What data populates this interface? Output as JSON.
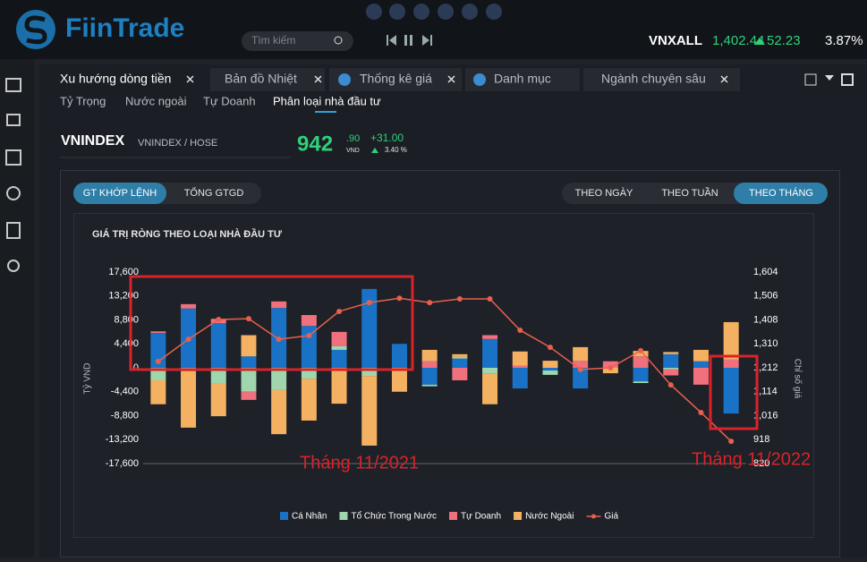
{
  "header": {
    "logo": "FiinTrade",
    "search_placeholder": "Tìm kiếm",
    "ticker": "VNXALL",
    "price": "1,402.44",
    "change": "52.23",
    "change_pct": "3.87%"
  },
  "tabs": [
    "Xu hướng dòng tiền",
    "Bản đồ Nhiệt",
    "Thống kê giá",
    "Danh mục",
    "Ngành chuyên sâu"
  ],
  "subtabs": [
    "Tỷ Trọng",
    "Nước ngoài",
    "Tự Doanh",
    "Phân loại nhà đầu tư"
  ],
  "index": {
    "name": "VNINDEX",
    "exchange": "VNINDEX / HOSE",
    "price_int": "942",
    "price_dec": ".90",
    "unit": "VND",
    "change": "+31.00",
    "change_pct": "3.40 %"
  },
  "value_buttons": [
    "GT KHỚP LỆNH",
    "TỔNG GTGD"
  ],
  "period_buttons": [
    "THEO NGÀY",
    "THEO TUẦN",
    "THEO THÁNG"
  ],
  "chart_data": {
    "type": "bar",
    "stacked": true,
    "title": "GIÁ TRỊ RÒNG THEO LOẠI NHÀ ĐẦU TƯ",
    "y_label": "Tỷ VND",
    "y2_label": "Chỉ số giá",
    "annotations": [
      "Tháng 11/2021",
      "Tháng 11/2022"
    ],
    "categories": [
      null,
      null,
      null,
      null,
      null,
      null,
      null,
      null,
      null,
      null,
      null,
      null,
      null,
      null,
      null,
      null,
      null,
      null,
      null,
      null
    ],
    "series": [
      {
        "name": "Cá Nhân",
        "color": "#1a72c6",
        "values": [
          6400,
          10900,
          8200,
          2100,
          11000,
          7700,
          3300,
          14500,
          4400,
          -3100,
          1700,
          5300,
          -3800,
          -500,
          -3800,
          0,
          -2500,
          2500,
          1200,
          -8400
        ]
      },
      {
        "name": "Tổ Chức Trong Nước",
        "color": "#9fd6ae",
        "values": [
          -2300,
          -600,
          -2800,
          -4400,
          -4100,
          -2000,
          700,
          -1500,
          0,
          -300,
          300,
          -1100,
          0,
          -800,
          0,
          0,
          -300,
          -300,
          0,
          0
        ]
      },
      {
        "name": "Tự Doanh",
        "color": "#f0707e",
        "values": [
          300,
          800,
          800,
          -1500,
          1200,
          2000,
          2600,
          0,
          0,
          1200,
          -2300,
          700,
          400,
          0,
          1300,
          1200,
          2100,
          -1100,
          -3100,
          1500
        ]
      },
      {
        "name": "Nước Ngoài",
        "color": "#f4b162",
        "values": [
          -4400,
          -10400,
          -6100,
          3900,
          -8100,
          -7700,
          -6600,
          -12800,
          -4400,
          2100,
          500,
          -5600,
          2600,
          1300,
          2500,
          -1000,
          1000,
          400,
          2100,
          6900
        ]
      },
      {
        "name": "Giá",
        "color": "#e8604c",
        "axis": "y2",
        "type": "line",
        "values": [
          1238,
          1329,
          1410,
          1413,
          1329,
          1344,
          1443,
          1479,
          1497,
          1479,
          1494,
          1494,
          1366,
          1296,
          1205,
          1212,
          1282,
          1142,
          1029,
          911
        ]
      }
    ],
    "ylim": [
      -17600,
      17600
    ],
    "yticks": [
      {
        "value": 17600,
        "label": "17,600"
      },
      {
        "value": 13200,
        "label": "13,200"
      },
      {
        "value": 8800,
        "label": "8,800"
      },
      {
        "value": 4400,
        "label": "4,400"
      },
      0,
      {
        "value": -4400,
        "label": "-4,400"
      },
      {
        "value": -8800,
        "label": "-8,800"
      },
      {
        "value": -13200,
        "label": "-13,200"
      },
      {
        "value": -17600,
        "label": "-17,600"
      }
    ],
    "y2lim": [
      820,
      1604
    ],
    "y2ticks": [
      {
        "value": 1604,
        "label": "1,604"
      },
      {
        "value": 1506,
        "label": "1,506"
      },
      {
        "value": 1408,
        "label": "1,408"
      },
      {
        "value": 1310,
        "label": "1,310"
      },
      {
        "value": 1212,
        "label": "1,212"
      },
      {
        "value": 1114,
        "label": "1,114"
      },
      {
        "value": 1016,
        "label": "1,016"
      },
      918,
      820
    ],
    "grid": false,
    "legend": "bottom"
  }
}
